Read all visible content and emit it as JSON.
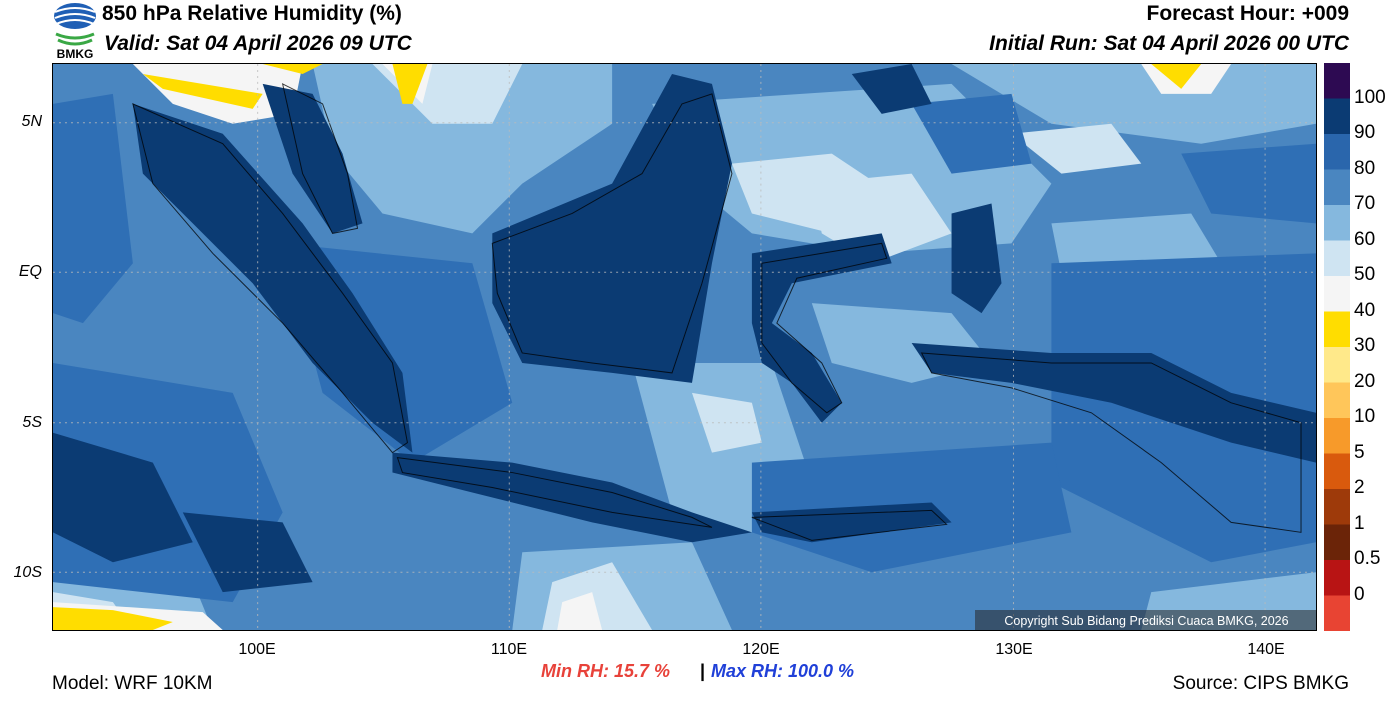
{
  "header": {
    "title": "850 hPa Relative Humidity (%)",
    "valid": "Valid: Sat 04 April 2026 09 UTC",
    "forecast_hour": "Forecast Hour: +009",
    "initial_run": "Initial Run: Sat 04 April 2026 00 UTC",
    "logo_text": "BMKG"
  },
  "map": {
    "lat_ticks": [
      "5N",
      "EQ",
      "5S",
      "10S"
    ],
    "lon_ticks": [
      "100E",
      "110E",
      "120E",
      "130E",
      "140E"
    ],
    "copyright": "Copyright Sub Bidang Prediksi Cuaca BMKG, 2026",
    "colors": {
      "ocean_base": "#4a86c0",
      "very_humid": "#0b3b73",
      "humid": "#2f6fb5",
      "moderate": "#85b8de",
      "dry": "#cfe4f2",
      "very_dry": "#f5f5f5",
      "yellow": "#ffdd00"
    }
  },
  "colorbar": {
    "labels": [
      "100",
      "90",
      "80",
      "70",
      "60",
      "50",
      "40",
      "30",
      "20",
      "10",
      "5",
      "2",
      "1",
      "0.5",
      "0"
    ],
    "colors": [
      "#2d0a52",
      "#0b3b73",
      "#2a66ac",
      "#4a86c0",
      "#85b8de",
      "#cfe4f2",
      "#f5f5f5",
      "#ffdd00",
      "#ffe98a",
      "#ffc65a",
      "#f79a2a",
      "#d95a0d",
      "#9e3a0a",
      "#6b2408",
      "#b81414",
      "#e84433"
    ]
  },
  "footer": {
    "model": "Model: WRF 10KM",
    "source": "Source: CIPS BMKG",
    "min_rh": "Min RH:  15.7 %",
    "separator": "|",
    "max_rh": "Max RH: 100.0 %"
  }
}
